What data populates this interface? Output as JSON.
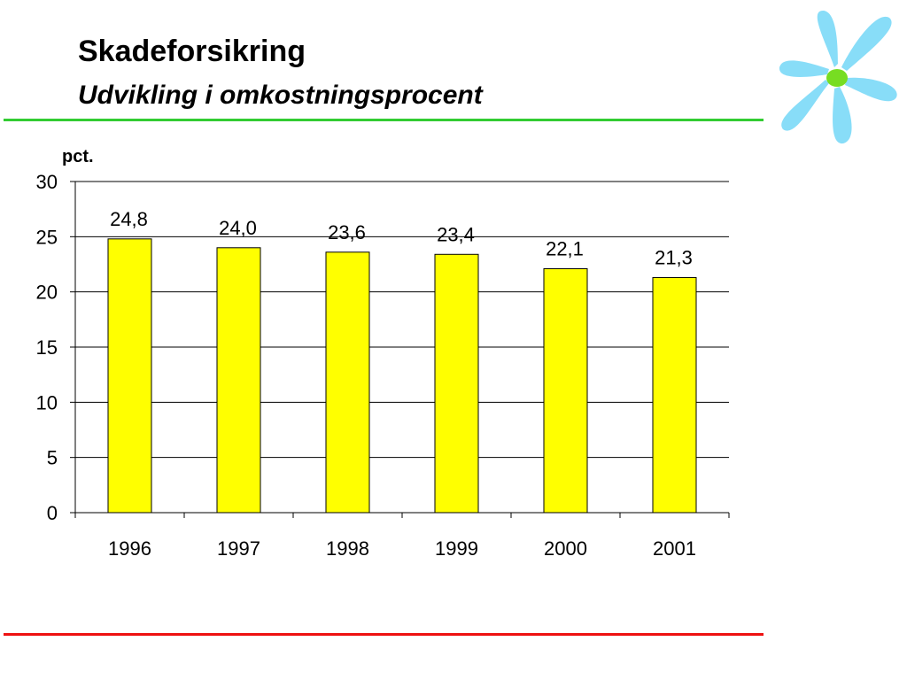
{
  "slide": {
    "title": "Skadeforsikring",
    "subtitle": "Udvikling i omkostningsprocent",
    "top_rule_color": "#33cc33",
    "bottom_rule_color": "#ee1111",
    "logo_icon": "flower-icon"
  },
  "chart_data": {
    "type": "bar",
    "title": "",
    "xlabel": "",
    "ylabel": "pct.",
    "categories": [
      "1996",
      "1997",
      "1998",
      "1999",
      "2000",
      "2001"
    ],
    "values": [
      24.8,
      24.0,
      23.6,
      23.4,
      22.1,
      21.3
    ],
    "data_labels": [
      "24,8",
      "24,0",
      "23,6",
      "23,4",
      "22,1",
      "21,3"
    ],
    "ylim": [
      0,
      30
    ],
    "yticks": [
      "0",
      "5",
      "10",
      "15",
      "20",
      "25",
      "30"
    ],
    "grid": true,
    "legend": "none",
    "bar_color": "#ffff00"
  }
}
